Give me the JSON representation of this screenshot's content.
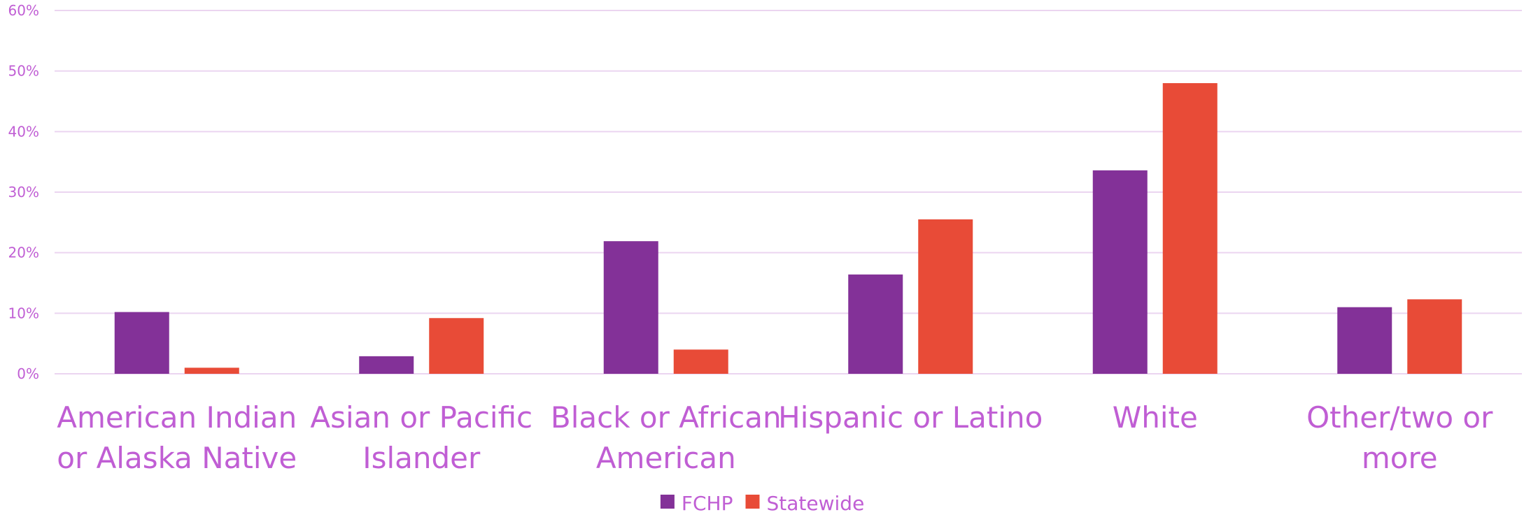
{
  "chart_data": {
    "type": "bar",
    "title": "",
    "xlabel": "",
    "ylabel": "",
    "ylim": [
      0,
      60
    ],
    "yticks": [
      0,
      10,
      20,
      30,
      40,
      50,
      60
    ],
    "ytick_labels": [
      "0%",
      "10%",
      "20%",
      "30%",
      "40%",
      "50%",
      "60%"
    ],
    "grid": true,
    "legend_position": "bottom",
    "categories": [
      [
        "American Indian",
        "or Alaska Native"
      ],
      [
        "Asian or Pacific",
        "Islander"
      ],
      [
        "Black or African",
        "American"
      ],
      [
        "Hispanic or Latino"
      ],
      [
        "White"
      ],
      [
        "Other/two or",
        "more"
      ]
    ],
    "series": [
      {
        "name": "FCHP",
        "color": "#833198",
        "values": [
          10.2,
          2.9,
          21.9,
          16.4,
          33.6,
          11.0
        ]
      },
      {
        "name": "Statewide",
        "color": "#E84B37",
        "values": [
          1.0,
          9.2,
          4.0,
          25.5,
          48.0,
          12.3
        ]
      }
    ],
    "colors": {
      "text": "#C05ED4",
      "grid": "#EBD5F0"
    }
  }
}
